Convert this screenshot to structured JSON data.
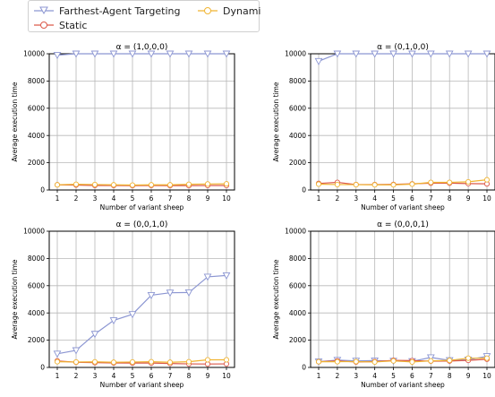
{
  "legend": {
    "entries": [
      {
        "label": "Farthest-Agent Targeting",
        "color": "#8c96d2",
        "marker": "triangle-down"
      },
      {
        "label": "Dynamic",
        "color": "#f0b432",
        "marker": "circle"
      },
      {
        "label": "Static",
        "color": "#dc5a4b",
        "marker": "circle"
      }
    ]
  },
  "chart_data": [
    {
      "type": "line",
      "title": "α = (1,0,0,0)",
      "xlabel": "Number of variant sheep",
      "ylabel": "Average execution time",
      "x": [
        1,
        2,
        3,
        4,
        5,
        6,
        7,
        8,
        9,
        10
      ],
      "xticks": [
        "1",
        "2",
        "3",
        "4",
        "5",
        "6",
        "7",
        "8",
        "9",
        "10"
      ],
      "yticks": [
        "0",
        "2000",
        "4000",
        "6000",
        "8000",
        "10000"
      ],
      "ylim": [
        0,
        10000
      ],
      "grid": true,
      "series": [
        {
          "name": "Farthest-Agent Targeting",
          "values": [
            9900,
            10000,
            10000,
            10000,
            10000,
            10000,
            10000,
            10000,
            10000,
            10000
          ]
        },
        {
          "name": "Dynamic",
          "values": [
            380,
            420,
            400,
            380,
            360,
            380,
            380,
            420,
            440,
            450
          ]
        },
        {
          "name": "Static",
          "values": [
            380,
            360,
            330,
            330,
            320,
            330,
            320,
            320,
            330,
            330
          ]
        }
      ]
    },
    {
      "type": "line",
      "title": "α = (0,1,0,0)",
      "xlabel": "Number of variant sheep",
      "ylabel": "Average execution time",
      "x": [
        1,
        2,
        3,
        4,
        5,
        6,
        7,
        8,
        9,
        10
      ],
      "xticks": [
        "1",
        "2",
        "3",
        "4",
        "5",
        "6",
        "7",
        "8",
        "9",
        "10"
      ],
      "yticks": [
        "0",
        "2000",
        "4000",
        "6000",
        "8000",
        "10000"
      ],
      "ylim": [
        0,
        10000
      ],
      "grid": true,
      "series": [
        {
          "name": "Farthest-Agent Targeting",
          "values": [
            9450,
            10000,
            10000,
            10000,
            10000,
            10000,
            10000,
            10000,
            10000,
            10000
          ]
        },
        {
          "name": "Dynamic",
          "values": [
            430,
            400,
            390,
            380,
            380,
            430,
            560,
            560,
            600,
            750
          ]
        },
        {
          "name": "Static",
          "values": [
            480,
            560,
            400,
            400,
            410,
            450,
            500,
            500,
            470,
            450
          ]
        }
      ]
    },
    {
      "type": "line",
      "title": "α = (0,0,1,0)",
      "xlabel": "Number of variant sheep",
      "ylabel": "Average execution time",
      "x": [
        1,
        2,
        3,
        4,
        5,
        6,
        7,
        8,
        9,
        10
      ],
      "xticks": [
        "1",
        "2",
        "3",
        "4",
        "5",
        "6",
        "7",
        "8",
        "9",
        "10"
      ],
      "yticks": [
        "0",
        "2000",
        "4000",
        "6000",
        "8000",
        "10000"
      ],
      "ylim": [
        0,
        10000
      ],
      "grid": true,
      "series": [
        {
          "name": "Farthest-Agent Targeting",
          "values": [
            1000,
            1250,
            2450,
            3450,
            3900,
            5300,
            5480,
            5500,
            6650,
            6750
          ]
        },
        {
          "name": "Dynamic",
          "values": [
            420,
            400,
            410,
            380,
            400,
            420,
            380,
            420,
            560,
            560
          ]
        },
        {
          "name": "Static",
          "values": [
            480,
            380,
            350,
            330,
            320,
            320,
            290,
            260,
            250,
            260
          ]
        }
      ]
    },
    {
      "type": "line",
      "title": "α = (0,0,0,1)",
      "xlabel": "Number of variant sheep",
      "ylabel": "Average execution time",
      "x": [
        1,
        2,
        3,
        4,
        5,
        6,
        7,
        8,
        9,
        10
      ],
      "xticks": [
        "1",
        "2",
        "3",
        "4",
        "5",
        "6",
        "7",
        "8",
        "9",
        "10"
      ],
      "yticks": [
        "0",
        "2000",
        "4000",
        "6000",
        "8000",
        "10000"
      ],
      "ylim": [
        0,
        10000
      ],
      "grid": true,
      "series": [
        {
          "name": "Farthest-Agent Targeting",
          "values": [
            420,
            540,
            480,
            500,
            470,
            450,
            730,
            520,
            560,
            820
          ]
        },
        {
          "name": "Dynamic",
          "values": [
            420,
            420,
            430,
            400,
            480,
            400,
            480,
            520,
            680,
            680
          ]
        },
        {
          "name": "Static",
          "values": [
            420,
            480,
            400,
            430,
            520,
            500,
            460,
            470,
            520,
            600
          ]
        }
      ]
    }
  ]
}
